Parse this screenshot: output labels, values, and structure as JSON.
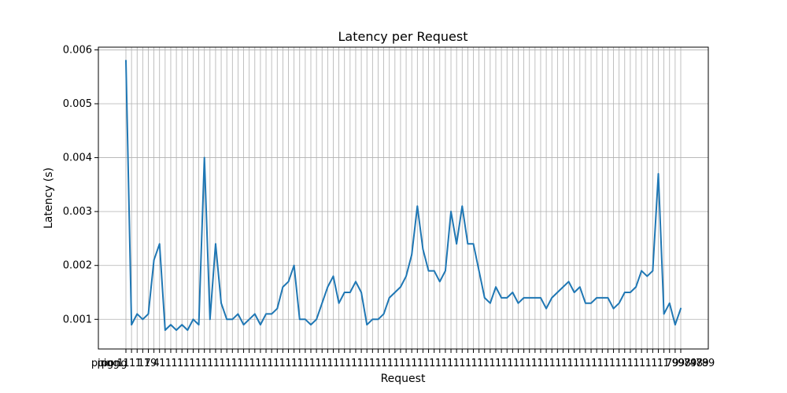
{
  "chart_data": {
    "type": "line",
    "title": "Latency per Request",
    "xlabel": "Request",
    "ylabel": "Latency (s)",
    "grid": true,
    "series_color": "#1f77b4",
    "ylim": [
      0.00045,
      0.00605
    ],
    "yticks": [
      0.001,
      0.002,
      0.003,
      0.004,
      0.005,
      0.006
    ],
    "ytick_labels": [
      "0.001",
      "0.002",
      "0.003",
      "0.004",
      "0.005",
      "0.006"
    ],
    "xtick_labels_visible": [
      "ping",
      "ping",
      "pong",
      "1",
      "1",
      "1",
      "1",
      "17",
      "19",
      "4",
      "1",
      "1",
      "1",
      "1",
      "1",
      "1",
      "1",
      "1",
      "1",
      "1",
      "1",
      "1",
      "1",
      "1",
      "1",
      "1",
      "1",
      "1",
      "1",
      "1",
      "1",
      "1",
      "1",
      "1",
      "1",
      "1",
      "1",
      "1",
      "1",
      "1",
      "1",
      "1",
      "1",
      "1",
      "1",
      "1",
      "1",
      "1",
      "1",
      "1",
      "1",
      "1",
      "1",
      "1",
      "1",
      "1",
      "1",
      "1",
      "1",
      "1",
      "1",
      "1",
      "1",
      "1",
      "1",
      "1",
      "1",
      "1",
      "1",
      "1",
      "1",
      "1",
      "1",
      "1",
      "1",
      "1",
      "1",
      "1",
      "1",
      "1",
      "1",
      "1",
      "1",
      "1",
      "1",
      "1",
      "1",
      "1",
      "1",
      "1",
      "1",
      "1",
      "1",
      "1",
      "1",
      "79",
      "99",
      "98",
      "79",
      "48",
      "79",
      "89"
    ],
    "values": [
      0.0058,
      0.0009,
      0.0011,
      0.001,
      0.0011,
      0.0021,
      0.0024,
      0.0008,
      0.0009,
      0.0008,
      0.0009,
      0.0008,
      0.001,
      0.0009,
      0.004,
      0.001,
      0.0024,
      0.0013,
      0.001,
      0.001,
      0.0011,
      0.0009,
      0.001,
      0.0011,
      0.0009,
      0.0011,
      0.0011,
      0.0012,
      0.0016,
      0.0017,
      0.002,
      0.001,
      0.001,
      0.0009,
      0.001,
      0.0013,
      0.0016,
      0.0018,
      0.0013,
      0.0015,
      0.0015,
      0.0017,
      0.0015,
      0.0009,
      0.001,
      0.001,
      0.0011,
      0.0014,
      0.0015,
      0.0016,
      0.0018,
      0.0022,
      0.0031,
      0.0023,
      0.0019,
      0.0019,
      0.0017,
      0.0019,
      0.003,
      0.0024,
      0.0031,
      0.0024,
      0.0024,
      0.0019,
      0.0014,
      0.0013,
      0.0016,
      0.0014,
      0.0014,
      0.0015,
      0.0013,
      0.0014,
      0.0014,
      0.0014,
      0.0014,
      0.0012,
      0.0014,
      0.0015,
      0.0016,
      0.0017,
      0.0015,
      0.0016,
      0.0013,
      0.0013,
      0.0014,
      0.0014,
      0.0014,
      0.0012,
      0.0013,
      0.0015,
      0.0015,
      0.0016,
      0.0019,
      0.0018,
      0.0019,
      0.0037,
      0.0011,
      0.0013,
      0.0009,
      0.0012
    ]
  }
}
